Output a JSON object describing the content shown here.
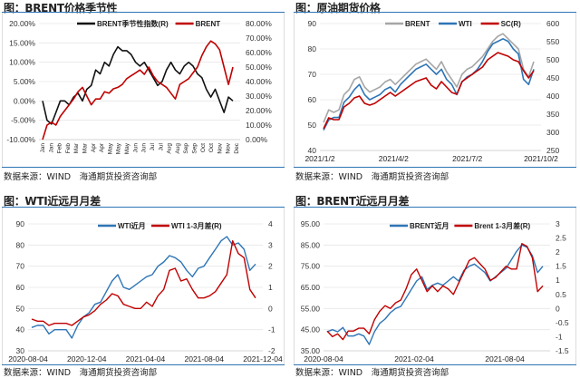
{
  "source_note": "数据来源：WIND　海通期货投资咨询部",
  "colors": {
    "black": "#111111",
    "red": "#c00000",
    "blue": "#2e75b6",
    "gray": "#a6a6a6",
    "rule": "#2e75b6",
    "grid": "#e6e6e6"
  },
  "chart_data": [
    {
      "id": "brent-seasonality",
      "type": "line",
      "title": "图：BRENT价格季节性",
      "legend": [
        "BRENT季节性指数(R)",
        "BRENT"
      ],
      "y_left": {
        "ticks": [
          "20.00%",
          "15.00%",
          "10.00%",
          "5.00%",
          "0.00%",
          "-5.00%",
          "-10.00%"
        ],
        "range": [
          -10,
          20
        ]
      },
      "y_right": {
        "ticks": [
          "80.00%",
          "70.00%",
          "60.00%",
          "50.00%",
          "40.00%",
          "30.00%",
          "20.00%",
          "10.00%",
          "0.00%"
        ],
        "range": [
          0,
          80
        ]
      },
      "x_ticks": [
        "Jan",
        "Jan",
        "Feb",
        "Feb",
        "Mar",
        "Mar",
        "Apr",
        "Apr",
        "May",
        "May",
        "May",
        "Jun",
        "Jun",
        "Jul",
        "Jul",
        "Aug",
        "Aug",
        "Sep",
        "Sep",
        "Oct",
        "Oct",
        "Nov",
        "Nov",
        "Dec"
      ],
      "series": [
        {
          "name": "BRENT季节性指数(R)",
          "axis": "left",
          "color": "#111111",
          "values": [
            0,
            -5,
            -6,
            -3,
            0,
            0,
            -1,
            1,
            2,
            0,
            3,
            4,
            8,
            7,
            10,
            9,
            12,
            14,
            13,
            13,
            12,
            10,
            9,
            10,
            8,
            6,
            4,
            5,
            8,
            10,
            8,
            7,
            9,
            10,
            9,
            7,
            6,
            3,
            1,
            3,
            0,
            -3,
            1,
            0
          ]
        },
        {
          "name": "BRENT",
          "axis": "right",
          "color": "#c00000",
          "values": [
            0,
            10,
            12,
            10,
            16,
            20,
            24,
            28,
            33,
            36,
            30,
            24,
            28,
            28,
            33,
            32,
            35,
            36,
            38,
            42,
            44,
            46,
            48,
            45,
            50,
            44,
            40,
            38,
            36,
            32,
            28,
            38,
            40,
            42,
            46,
            50,
            58,
            64,
            68,
            66,
            62,
            50,
            38,
            50
          ]
        }
      ],
      "source": "数据来源：WIND　海通期货投资咨询部"
    },
    {
      "id": "crude-futures-prices",
      "type": "line",
      "title": "图：原油期货价格",
      "legend": [
        "BRENT",
        "WTI",
        "SC(R)"
      ],
      "y_left": {
        "ticks": [
          "90",
          "80",
          "70",
          "60",
          "50",
          "40"
        ],
        "range": [
          40,
          90
        ]
      },
      "y_right": {
        "ticks": [
          "600",
          "550",
          "500",
          "450",
          "400",
          "350",
          "300",
          "250"
        ],
        "range": [
          250,
          600
        ]
      },
      "x_ticks": [
        "2021/1/2",
        "2021/4/2",
        "2021/7/2",
        "2021/10/2"
      ],
      "series": [
        {
          "name": "BRENT",
          "axis": "left",
          "color": "#a6a6a6",
          "values": [
            51,
            56,
            55,
            56,
            62,
            64,
            68,
            69,
            65,
            63,
            64,
            65,
            67,
            68,
            66,
            68,
            70,
            72,
            74,
            75,
            76,
            74,
            72,
            75,
            71,
            68,
            65,
            70,
            72,
            73,
            75,
            77,
            80,
            83,
            85,
            86,
            84,
            82,
            80,
            72,
            69,
            75
          ]
        },
        {
          "name": "WTI",
          "axis": "left",
          "color": "#2e75b6",
          "values": [
            48,
            52,
            53,
            53,
            59,
            61,
            64,
            66,
            62,
            60,
            61,
            62,
            64,
            65,
            63,
            66,
            68,
            70,
            72,
            73,
            74,
            72,
            70,
            72,
            68,
            66,
            62,
            67,
            69,
            70,
            72,
            75,
            79,
            82,
            83,
            84,
            83,
            80,
            78,
            68,
            66,
            72
          ]
        },
        {
          "name": "SC(R)",
          "axis": "right",
          "color": "#c00000",
          "values": [
            310,
            340,
            335,
            335,
            370,
            380,
            395,
            400,
            380,
            375,
            380,
            390,
            400,
            410,
            400,
            410,
            420,
            430,
            440,
            445,
            450,
            430,
            420,
            440,
            425,
            410,
            405,
            440,
            450,
            460,
            470,
            480,
            500,
            510,
            520,
            515,
            510,
            500,
            495,
            470,
            450,
            470
          ]
        }
      ],
      "source": "数据来源：WIND　海通期货投资咨询部"
    },
    {
      "id": "wti-spread",
      "type": "line",
      "title": "图：WTI近远月月差",
      "legend": [
        "WTI近月",
        "WTI 1-3月差(R)"
      ],
      "y_left": {
        "ticks": [
          "90",
          "80",
          "70",
          "60",
          "50",
          "40",
          "30"
        ],
        "range": [
          30,
          90
        ]
      },
      "y_right": {
        "ticks": [
          "4",
          "3",
          "2",
          "1",
          "0",
          "-1",
          "-2"
        ],
        "range": [
          -2,
          4
        ]
      },
      "x_ticks": [
        "2020-08-04",
        "2020-12-04",
        "2021-04-04",
        "2021-08-04",
        "2021-12-04"
      ],
      "series": [
        {
          "name": "WTI近月",
          "axis": "left",
          "color": "#2e75b6",
          "values": [
            41,
            42,
            42,
            38,
            40,
            40,
            40,
            36,
            42,
            46,
            48,
            52,
            53,
            58,
            63,
            66,
            60,
            59,
            61,
            63,
            65,
            66,
            70,
            72,
            75,
            74,
            72,
            68,
            65,
            69,
            70,
            74,
            78,
            82,
            84,
            80,
            81,
            78,
            68,
            71
          ]
        },
        {
          "name": "WTI 1-3月差(R)",
          "axis": "right",
          "color": "#c00000",
          "values": [
            -0.5,
            -0.6,
            -0.6,
            -0.8,
            -0.7,
            -0.7,
            -0.7,
            -0.8,
            -0.6,
            -0.4,
            -0.3,
            -0.1,
            0.2,
            0.4,
            0.7,
            0.6,
            0.2,
            0.1,
            0.0,
            0.0,
            0.3,
            0.1,
            0.6,
            0.9,
            1.8,
            1.9,
            1.3,
            1.4,
            0.9,
            0.5,
            0.5,
            0.6,
            0.8,
            1.2,
            1.6,
            3.2,
            2.6,
            2.4,
            0.9,
            0.5
          ]
        }
      ],
      "source": "数据来源：WIND　海通期货投资咨询部"
    },
    {
      "id": "brent-spread",
      "type": "line",
      "title": "图：BRENT近远月月差",
      "legend": [
        "BRENT近月",
        "Brent 1-3月差(R)"
      ],
      "y_left": {
        "ticks": [
          "95.00",
          "85.00",
          "75.00",
          "65.00",
          "55.00",
          "45.00",
          "35.00"
        ],
        "range": [
          35,
          95
        ]
      },
      "y_right": {
        "ticks": [
          "3",
          "2.5",
          "2",
          "1.5",
          "1",
          "0.5",
          "0",
          "-0.5",
          "-1",
          "-1.5"
        ],
        "range": [
          -1.5,
          3
        ]
      },
      "x_ticks": [
        "2020-08-04",
        "2021-02-04",
        "2021-08-04"
      ],
      "series": [
        {
          "name": "BRENT近月",
          "axis": "left",
          "color": "#2e75b6",
          "values": [
            44,
            45,
            44,
            46,
            42,
            42,
            43,
            42,
            38,
            44,
            48,
            50,
            53,
            55,
            56,
            60,
            64,
            68,
            70,
            64,
            66,
            67,
            66,
            68,
            70,
            68,
            73,
            75,
            76,
            74,
            72,
            68,
            70,
            72,
            74,
            78,
            82,
            85,
            84,
            80,
            72,
            75
          ]
        },
        {
          "name": "Brent 1-3月差(R)",
          "axis": "right",
          "color": "#c00000",
          "values": [
            -0.8,
            -1.0,
            -0.9,
            -1.1,
            -0.8,
            -0.8,
            -0.7,
            -0.7,
            -0.9,
            -0.4,
            -0.1,
            0.1,
            0.0,
            0.2,
            0.3,
            0.7,
            1.2,
            1.4,
            1.0,
            0.6,
            0.8,
            0.6,
            0.8,
            0.7,
            0.5,
            0.9,
            1.3,
            1.7,
            1.8,
            1.6,
            1.4,
            1.0,
            1.1,
            1.3,
            1.5,
            1.4,
            1.4,
            2.3,
            2.2,
            1.8,
            0.6,
            0.8
          ]
        }
      ],
      "source": "数据来源：WIND　海通期货投资咨询部"
    }
  ]
}
